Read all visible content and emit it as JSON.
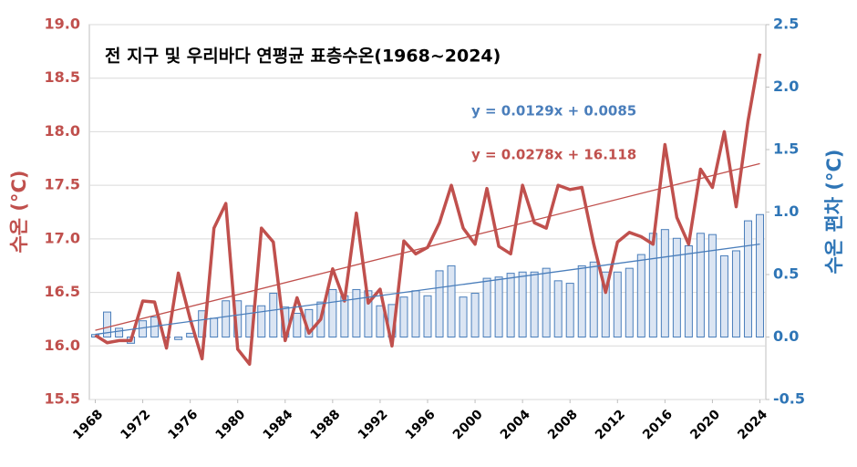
{
  "chart_data": {
    "type": "combo",
    "title": "전 지구 및 우리바다 연평균 표층수온(1968~2024)",
    "y_label": "수온 (°C)",
    "y2_label": "수온 편차 (°C)",
    "x": [
      1968,
      1969,
      1970,
      1971,
      1972,
      1973,
      1974,
      1975,
      1976,
      1977,
      1978,
      1979,
      1980,
      1981,
      1982,
      1983,
      1984,
      1985,
      1986,
      1987,
      1988,
      1989,
      1990,
      1991,
      1992,
      1993,
      1994,
      1995,
      1996,
      1997,
      1998,
      1999,
      2000,
      2001,
      2002,
      2003,
      2004,
      2005,
      2006,
      2007,
      2008,
      2009,
      2010,
      2011,
      2012,
      2013,
      2014,
      2015,
      2016,
      2017,
      2018,
      2019,
      2020,
      2021,
      2022,
      2023,
      2024
    ],
    "xlim": [
      1967.5,
      2024.5
    ],
    "xticks": [
      1968,
      1972,
      1976,
      1980,
      1984,
      1988,
      1992,
      1996,
      2000,
      2004,
      2008,
      2012,
      2016,
      2020,
      2024
    ],
    "ylim": [
      15.5,
      19.0
    ],
    "yticks": [
      15.5,
      {
        "value": 16.0,
        "label": "16.0"
      },
      16.5,
      {
        "value": 17.0,
        "label": "17.0"
      },
      17.5,
      {
        "value": 18.0,
        "label": "18.0"
      },
      18.5,
      {
        "value": 19.0,
        "label": "19.0"
      }
    ],
    "y2lim": [
      -0.5,
      2.5
    ],
    "y2ticks": [
      -0.5,
      {
        "value": 0.0,
        "label": "0.0"
      },
      0.5,
      {
        "value": 1.0,
        "label": "1.0"
      },
      1.5,
      {
        "value": 2.0,
        "label": "2.0"
      },
      2.5
    ],
    "grid": true,
    "series": [
      {
        "type": "bar",
        "axis": "y2",
        "color": "#4a7ebb",
        "values": [
          0.02,
          0.2,
          0.07,
          -0.05,
          0.13,
          0.16,
          0.0,
          -0.02,
          0.03,
          0.21,
          0.15,
          0.29,
          0.29,
          0.25,
          0.25,
          0.35,
          0.24,
          0.19,
          0.22,
          0.28,
          0.38,
          0.33,
          0.38,
          0.37,
          0.25,
          0.26,
          0.32,
          0.37,
          0.33,
          0.53,
          0.57,
          0.32,
          0.35,
          0.47,
          0.48,
          0.51,
          0.52,
          0.52,
          0.55,
          0.45,
          0.43,
          0.57,
          0.6,
          0.52,
          0.52,
          0.55,
          0.66,
          0.83,
          0.86,
          0.79,
          0.73,
          0.83,
          0.82,
          0.65,
          0.69,
          0.93,
          0.98
        ]
      },
      {
        "type": "line",
        "axis": "y",
        "color": "#c0504d",
        "values": [
          16.1,
          16.03,
          16.05,
          16.05,
          16.42,
          16.41,
          15.98,
          16.68,
          16.25,
          15.88,
          17.1,
          17.33,
          15.97,
          15.83,
          17.1,
          16.97,
          16.05,
          16.45,
          16.12,
          16.25,
          16.72,
          16.42,
          17.24,
          16.4,
          16.53,
          16.0,
          16.98,
          16.86,
          16.92,
          17.15,
          17.5,
          17.1,
          16.95,
          17.47,
          16.93,
          16.86,
          17.5,
          17.15,
          17.1,
          17.5,
          17.46,
          17.48,
          16.95,
          16.5,
          16.97,
          17.06,
          17.02,
          16.95,
          17.88,
          17.2,
          16.95,
          17.65,
          17.48,
          18.0,
          17.3,
          18.1,
          18.73
        ]
      }
    ],
    "trendlines": [
      {
        "equation": "y = 0.0129x + 0.0085",
        "slope": 0.0129,
        "intercept": 0.0085,
        "axis": "y2",
        "color": "#4a7ebb"
      },
      {
        "equation": "y = 0.0278x + 16.118",
        "slope": 0.0278,
        "intercept": 16.118,
        "axis": "y",
        "color": "#c0504d"
      }
    ]
  }
}
